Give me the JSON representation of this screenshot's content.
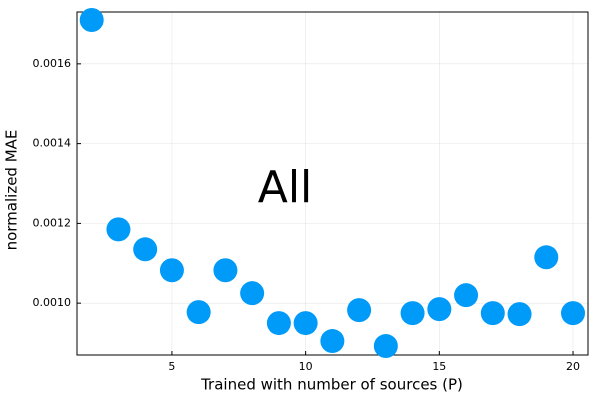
{
  "chart_data": {
    "type": "scatter",
    "xlabel": "Trained with number of sources (P)",
    "ylabel": "normalized MAE",
    "annotation": "All",
    "series": [
      {
        "color": "#009af9",
        "x": [
          2,
          3,
          4,
          5,
          6,
          7,
          8,
          9,
          10,
          11,
          12,
          13,
          14,
          15,
          16,
          17,
          18,
          19,
          20
        ],
        "values": [
          0.00171,
          0.001185,
          0.001135,
          0.0010825,
          0.0009775,
          0.0010825,
          0.001025,
          0.00095,
          0.00095,
          0.000905,
          0.0009825,
          0.0008925,
          0.000975,
          0.000985,
          0.00102,
          0.000975,
          0.0009725,
          0.001115,
          0.000975
        ]
      }
    ],
    "xlim": [
      1.45,
      20.56
    ],
    "ylim": [
      0.00087,
      0.00173
    ],
    "xticks": [
      5,
      10,
      15,
      20
    ],
    "yticks": [
      {
        "value": 0.001,
        "label": "0.0010"
      },
      {
        "value": 0.0012,
        "label": "0.0012"
      },
      {
        "value": 0.0014,
        "label": "0.0014"
      },
      {
        "value": 0.0016,
        "label": "0.0016"
      }
    ],
    "grid": true
  }
}
